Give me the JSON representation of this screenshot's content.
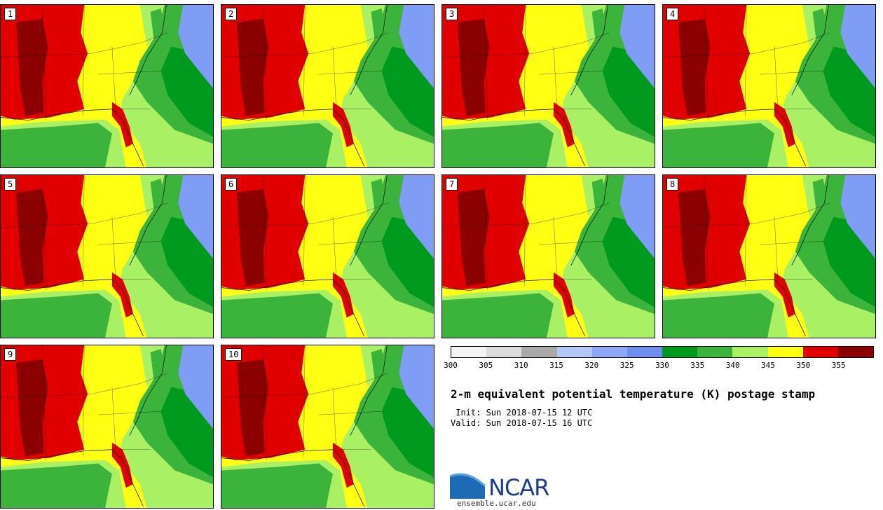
{
  "panels": [
    {
      "label": "1"
    },
    {
      "label": "2"
    },
    {
      "label": "3"
    },
    {
      "label": "4"
    },
    {
      "label": "5"
    },
    {
      "label": "6"
    },
    {
      "label": "7"
    },
    {
      "label": "8"
    },
    {
      "label": "9"
    },
    {
      "label": "10"
    }
  ],
  "colorbar": {
    "ticks": [
      "300",
      "305",
      "310",
      "315",
      "320",
      "325",
      "330",
      "335",
      "340",
      "345",
      "350",
      "355"
    ],
    "colors": [
      "#f4f4f4",
      "#dcdcdc",
      "#a9a9a9",
      "#b4c8f5",
      "#8fa8f5",
      "#6f8ef0",
      "#009a1e",
      "#3cb43c",
      "#aaf064",
      "#ffff14",
      "#e10000",
      "#8b0000"
    ]
  },
  "title": "2-m equivalent potential temperature (K) postage stamp",
  "init": " Init: Sun 2018-07-15 12 UTC",
  "valid": "Valid: Sun 2018-07-15 16 UTC",
  "logo": {
    "text": "NCAR",
    "url": "ensemble.ucar.edu"
  },
  "colors": {
    "land_yellow": "#ffff14",
    "hot_red": "#e10000",
    "hottest": "#8b0000",
    "green_dark": "#009a1e",
    "green_mid": "#3cb43c",
    "green_light": "#aaf064",
    "blue": "#7f9df5"
  }
}
